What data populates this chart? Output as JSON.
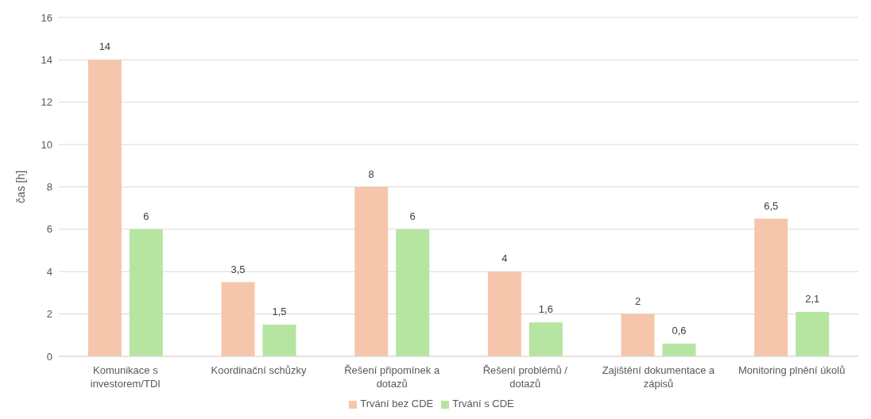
{
  "chart_data": {
    "type": "bar",
    "ylabel": "čas [h]",
    "categories": [
      "Komunikace s investorem/TDI",
      "Koordinační schůzky",
      "Řešení připomínek a dotazů",
      "Řešení problémů / dotazů",
      "Zajištění dokumentace a zápisů",
      "Monitoring plnění úkolů"
    ],
    "series": [
      {
        "name": "Trvání bez CDE",
        "color": "#f5c6ab",
        "values": [
          14,
          3.5,
          8,
          4,
          2,
          6.5
        ],
        "value_labels": [
          "14",
          "3,5",
          "8",
          "4",
          "2",
          "6,5"
        ]
      },
      {
        "name": "Trvání s CDE",
        "color": "#b5e5a1",
        "values": [
          6,
          1.5,
          6,
          1.6,
          0.6,
          2.1
        ],
        "value_labels": [
          "6",
          "1,5",
          "6",
          "1,6",
          "0,6",
          "2,1"
        ]
      }
    ],
    "ylim": [
      0,
      16
    ],
    "yticks": [
      0,
      2,
      4,
      6,
      8,
      10,
      12,
      14,
      16
    ],
    "grid": "y",
    "legend": "bottom"
  }
}
